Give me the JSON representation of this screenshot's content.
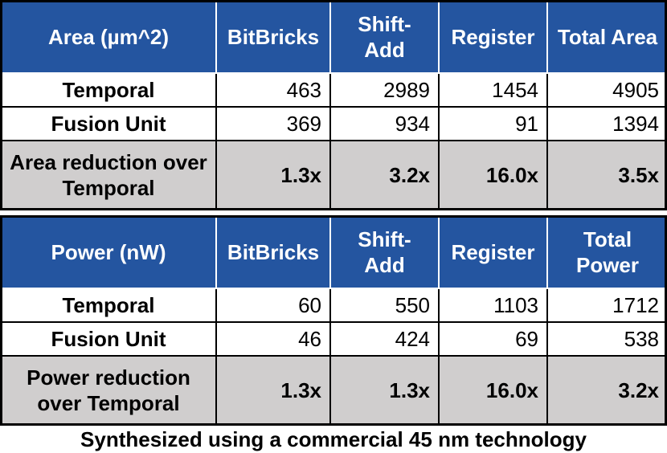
{
  "tables": [
    {
      "header": [
        "Area (µm^2)",
        "BitBricks",
        "Shift-Add",
        "Register",
        "Total Area"
      ],
      "rows": [
        [
          "Temporal",
          "463",
          "2989",
          "1454",
          "4905"
        ],
        [
          "Fusion Unit",
          "369",
          "934",
          "91",
          "1394"
        ],
        [
          "Area reduction over Temporal",
          "1.3x",
          "3.2x",
          "16.0x",
          "3.5x"
        ]
      ]
    },
    {
      "header": [
        "Power (nW)",
        "BitBricks",
        "Shift-Add",
        "Register",
        "Total Power"
      ],
      "rows": [
        [
          "Temporal",
          "60",
          "550",
          "1103",
          "1712"
        ],
        [
          "Fusion Unit",
          "46",
          "424",
          "69",
          "538"
        ],
        [
          "Power reduction over Temporal",
          "1.3x",
          "1.3x",
          "16.0x",
          "3.2x"
        ]
      ]
    }
  ],
  "caption": "Synthesized using a commercial 45 nm technology"
}
